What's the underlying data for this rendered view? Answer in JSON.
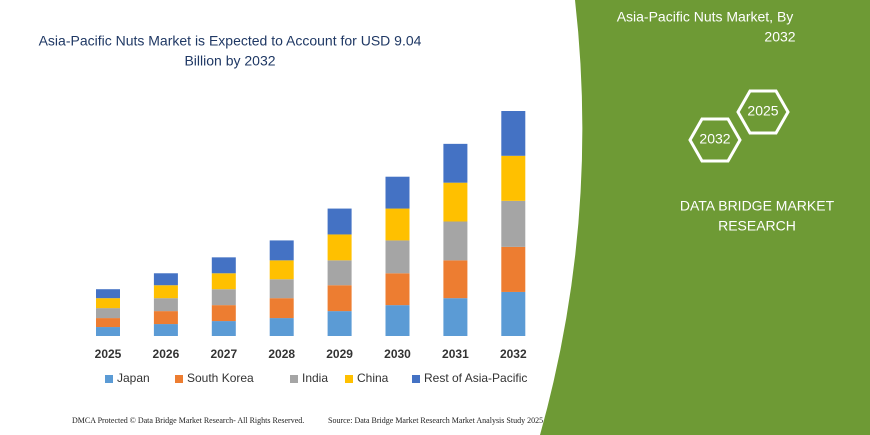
{
  "chart_data": {
    "type": "stacked_bar",
    "title": [
      "Asia-Pacific Nuts Market is Expected to Account for USD 9.04",
      "Billion by 2032"
    ],
    "categories": [
      "2025",
      "2026",
      "2027",
      "2028",
      "2029",
      "2030",
      "2031",
      "2032"
    ],
    "series": [
      {
        "name": "Japan",
        "color": "#5b9bd5",
        "values": [
          0.36,
          0.48,
          0.6,
          0.72,
          1.0,
          1.24,
          1.52,
          1.77
        ]
      },
      {
        "name": "South Korea",
        "color": "#ed7d31",
        "values": [
          0.36,
          0.52,
          0.64,
          0.8,
          1.04,
          1.28,
          1.52,
          1.81
        ]
      },
      {
        "name": "India",
        "color": "#a5a5a5",
        "values": [
          0.4,
          0.52,
          0.64,
          0.76,
          1.0,
          1.32,
          1.56,
          1.85
        ]
      },
      {
        "name": "China",
        "color": "#ffc000",
        "values": [
          0.4,
          0.52,
          0.64,
          0.76,
          1.04,
          1.28,
          1.56,
          1.81
        ]
      },
      {
        "name": "Rest of Asia-Pacific",
        "color": "#4472c4",
        "values": [
          0.36,
          0.48,
          0.64,
          0.8,
          1.04,
          1.28,
          1.56,
          1.8
        ]
      }
    ],
    "ylim": [
      0,
      9.04
    ]
  },
  "side_panel": {
    "heading": [
      "Asia-Pacific Nuts Market, By",
      "2032"
    ],
    "hex_labels": [
      "2032",
      "2025"
    ],
    "brand": [
      "DATA BRIDGE MARKET",
      "RESEARCH"
    ]
  },
  "footer": {
    "left": "DMCA Protected © Data Bridge Market Research-  All Rights Reserved.",
    "right": "Source: Data Bridge Market Research Market Analysis Study 2025"
  }
}
